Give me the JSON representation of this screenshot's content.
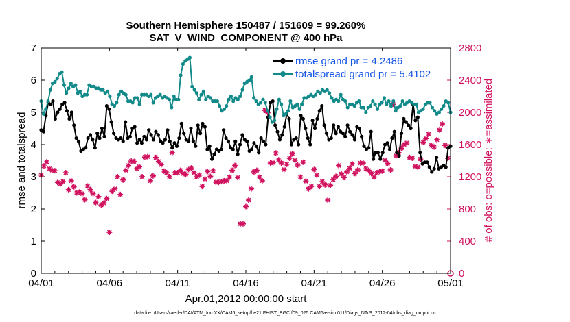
{
  "chart_data": {
    "type": "line",
    "title": "Southern Hemisphere 150487 / 151609 = 99.260%",
    "subtitle": "SAT_V_WIND_COMPONENT @ 400 hPa",
    "xlabel": "Apr.01,2012 00:00:00 start",
    "ylabel_left": "rmse and totalspread",
    "ylabel_right": "# of obs: o=possible; ∗=assimilated",
    "x_ticks": [
      "04/01",
      "04/06",
      "04/11",
      "04/16",
      "04/21",
      "04/26",
      "05/01"
    ],
    "y_left_ticks": [
      "0",
      "1",
      "2",
      "3",
      "4",
      "5",
      "6",
      "7"
    ],
    "y_right_ticks": [
      "0",
      "400",
      "800",
      "1200",
      "1600",
      "2000",
      "2400",
      "2800"
    ],
    "ylim_left": [
      0,
      7
    ],
    "ylim_right": [
      0,
      2800
    ],
    "xlim_days": [
      0,
      30
    ],
    "x_units": "days since 04/01 00:00 (6-hourly analyses)",
    "grid": "off",
    "legend_location": "top-right",
    "colors": {
      "rmse": "#000000",
      "spread": "#128a8a",
      "obs": "#d0125f",
      "legend_text": "#1455e6"
    },
    "series": [
      {
        "name": "rmse grand pr = 4.2486",
        "values": [
          4.45,
          4.4,
          4.9,
          5.3,
          5.25,
          5.35,
          4.8,
          5.0,
          5.1,
          5.25,
          5.3,
          5.05,
          4.8,
          5.0,
          4.6,
          4.2,
          4.1,
          3.8,
          3.85,
          3.9,
          4.2,
          4.3,
          4.15,
          3.9,
          4.35,
          4.2,
          4.5,
          4.25,
          5.2,
          5.1,
          4.7,
          4.35,
          4.2,
          4.15,
          4.2,
          4.1,
          4.7,
          4.2,
          4.25,
          4.5,
          4.55,
          4.05,
          4.15,
          4.05,
          4.25,
          4.15,
          4.45,
          4.3,
          4.15,
          4.4,
          4.3,
          4.1,
          4.05,
          4.15,
          4.45,
          4.1,
          3.9,
          4.05,
          3.95,
          4.2,
          4.65,
          4.35,
          4.15,
          4.1,
          4.5,
          4.1,
          3.95,
          4.6,
          4.35,
          4.65,
          4.55,
          3.85,
          3.95,
          3.55,
          3.7,
          3.85,
          3.8,
          3.85,
          4.45,
          4.2,
          4.1,
          3.9,
          3.85,
          4.1,
          3.7,
          4.0,
          4.3,
          4.15,
          4.1,
          3.8,
          3.85,
          4.05,
          3.95,
          3.75,
          4.2,
          4.1,
          4.0,
          4.85,
          5.3,
          5.35,
          4.6,
          4.4,
          4.15,
          4.3,
          4.55,
          4.95,
          4.8,
          4.0,
          4.15,
          4.2,
          4.0,
          4.9,
          4.8,
          4.5,
          4.2,
          4.0,
          4.75,
          4.5,
          4.8,
          5.05,
          5.2,
          4.6,
          4.35,
          4.15,
          4.2,
          4.6,
          4.35,
          4.55,
          4.4,
          4.35,
          4.25,
          4.6,
          4.4,
          4.3,
          4.15,
          4.55,
          4.5,
          4.25,
          3.95,
          3.85,
          3.9,
          4.4,
          3.55,
          3.75,
          3.75,
          3.55,
          3.75,
          4.0,
          4.05,
          3.85,
          4.2,
          4.4,
          3.75,
          3.65,
          4.35,
          4.8,
          4.7,
          4.6,
          4.5,
          5.25,
          4.75,
          4.85,
          3.75,
          3.4,
          3.45,
          3.45,
          3.3,
          3.15,
          3.25,
          3.6,
          3.25,
          3.3,
          3.35,
          3.3,
          3.9,
          3.95
        ],
        "note": "6-hourly values from 04/01 to 05/01"
      },
      {
        "name": "totalspread grand pr = 5.4102",
        "values": [
          5.35,
          4.95,
          5.1,
          5.35,
          5.7,
          5.9,
          5.95,
          6.05,
          6.2,
          6.25,
          5.85,
          5.6,
          5.75,
          5.9,
          5.8,
          5.85,
          5.6,
          5.65,
          5.5,
          5.55,
          5.55,
          5.85,
          5.8,
          5.8,
          5.75,
          5.75,
          5.7,
          5.7,
          5.6,
          5.65,
          5.5,
          5.25,
          5.2,
          5.3,
          5.55,
          5.65,
          5.6,
          5.55,
          5.35,
          5.35,
          5.3,
          5.45,
          5.45,
          5.25,
          5.55,
          5.55,
          5.55,
          5.5,
          5.55,
          5.3,
          5.45,
          5.5,
          5.55,
          5.45,
          5.5,
          5.45,
          5.4,
          5.15,
          5.5,
          5.4,
          5.4,
          6.15,
          6.5,
          6.6,
          6.65,
          6.7,
          5.8,
          5.7,
          5.6,
          5.4,
          5.55,
          5.65,
          5.4,
          5.5,
          5.45,
          5.35,
          5.35,
          5.35,
          5.2,
          5.05,
          5.1,
          5.2,
          5.4,
          5.5,
          5.35,
          5.45,
          5.4,
          5.5,
          5.7,
          5.9,
          5.95,
          6.0,
          6.1,
          5.45,
          5.35,
          5.25,
          5.3,
          5.4,
          5.3,
          5.05,
          4.85,
          4.7,
          4.75,
          5.1,
          5.4,
          5.25,
          4.9,
          4.95,
          5.05,
          5.35,
          5.15,
          5.2,
          5.25,
          5.1,
          5.25,
          5.45,
          5.45,
          5.5,
          5.55,
          5.5,
          5.55,
          5.65,
          5.6,
          5.7,
          5.65,
          5.7,
          5.6,
          5.45,
          5.35,
          5.4,
          5.35,
          5.55,
          5.4,
          5.35,
          5.15,
          5.25,
          5.25,
          5.2,
          5.3,
          5.35,
          5.15,
          5.15,
          5.0,
          5.15,
          5.2,
          5.35,
          5.25,
          5.1,
          5.25,
          5.3,
          5.45,
          5.25,
          5.35,
          5.2,
          5.35,
          5.05,
          5.15,
          5.2,
          5.35,
          5.25,
          5.3,
          5.35,
          5.3,
          5.25,
          5.25,
          5.0,
          5.05,
          5.1,
          5.25,
          5.3,
          5.3,
          5.15,
          5.05,
          4.95,
          5.0,
          5.1,
          5.2,
          5.35,
          5.3,
          5.0
        ],
        "note": "6-hourly values from 04/01 to 05/01"
      }
    ],
    "obs_assimilated": {
      "name": "# of obs assimilated",
      "axis": "right",
      "points": [
        [
          0.0,
          1220
        ],
        [
          0.2,
          1335
        ],
        [
          0.4,
          1385
        ],
        [
          0.6,
          1300
        ],
        [
          0.8,
          1280
        ],
        [
          1.0,
          1275
        ],
        [
          1.2,
          1130
        ],
        [
          1.4,
          1110
        ],
        [
          1.6,
          1140
        ],
        [
          1.8,
          1250
        ],
        [
          2.0,
          1040
        ],
        [
          2.2,
          1150
        ],
        [
          2.4,
          1075
        ],
        [
          2.6,
          1000
        ],
        [
          2.8,
          1010
        ],
        [
          3.0,
          990
        ],
        [
          3.2,
          915
        ],
        [
          3.4,
          1085
        ],
        [
          3.6,
          1040
        ],
        [
          3.8,
          990
        ],
        [
          4.0,
          880
        ],
        [
          4.2,
          955
        ],
        [
          4.4,
          850
        ],
        [
          4.6,
          875
        ],
        [
          4.8,
          930
        ],
        [
          5.0,
          510
        ],
        [
          5.2,
          1020
        ],
        [
          5.4,
          1050
        ],
        [
          5.6,
          1200
        ],
        [
          5.8,
          980
        ],
        [
          6.0,
          1160
        ],
        [
          6.2,
          1280
        ],
        [
          6.4,
          1340
        ],
        [
          6.6,
          1395
        ],
        [
          6.8,
          1390
        ],
        [
          7.0,
          1300
        ],
        [
          7.2,
          1325
        ],
        [
          7.4,
          1200
        ],
        [
          7.6,
          1445
        ],
        [
          7.8,
          1450
        ],
        [
          8.0,
          1150
        ],
        [
          8.2,
          1210
        ],
        [
          8.4,
          1440
        ],
        [
          8.6,
          1390
        ],
        [
          8.8,
          1350
        ],
        [
          9.0,
          1270
        ],
        [
          9.2,
          1250
        ],
        [
          9.4,
          1200
        ],
        [
          9.6,
          1500
        ],
        [
          9.8,
          1250
        ],
        [
          10.0,
          1250
        ],
        [
          10.2,
          1280
        ],
        [
          10.4,
          1240
        ],
        [
          10.6,
          1230
        ],
        [
          10.8,
          1290
        ],
        [
          11.0,
          1310
        ],
        [
          11.2,
          1250
        ],
        [
          11.4,
          1200
        ],
        [
          11.6,
          1220
        ],
        [
          11.8,
          1080
        ],
        [
          12.0,
          1170
        ],
        [
          12.2,
          1265
        ],
        [
          12.4,
          1205
        ],
        [
          12.6,
          1275
        ],
        [
          12.8,
          1135
        ],
        [
          13.0,
          1130
        ],
        [
          13.2,
          1140
        ],
        [
          13.4,
          1150
        ],
        [
          13.6,
          1150
        ],
        [
          13.8,
          1195
        ],
        [
          14.0,
          1280
        ],
        [
          14.2,
          1340
        ],
        [
          14.4,
          1190
        ],
        [
          14.6,
          615
        ],
        [
          14.8,
          615
        ],
        [
          15.0,
          830
        ],
        [
          15.2,
          910
        ],
        [
          15.4,
          1050
        ],
        [
          15.6,
          1260
        ],
        [
          15.8,
          1280
        ],
        [
          16.0,
          1195
        ],
        [
          16.2,
          1150
        ],
        [
          16.4,
          2025
        ],
        [
          16.6,
          1995
        ],
        [
          16.8,
          1370
        ],
        [
          17.0,
          1375
        ],
        [
          17.2,
          1495
        ],
        [
          17.4,
          1410
        ],
        [
          17.6,
          1370
        ],
        [
          17.8,
          1290
        ],
        [
          18.0,
          1355
        ],
        [
          18.2,
          1430
        ],
        [
          18.4,
          1485
        ],
        [
          18.6,
          1405
        ],
        [
          18.8,
          1345
        ],
        [
          19.0,
          1195
        ],
        [
          19.2,
          1380
        ],
        [
          19.4,
          1145
        ],
        [
          19.6,
          1050
        ],
        [
          19.8,
          1080
        ],
        [
          20.0,
          1290
        ],
        [
          20.2,
          1220
        ],
        [
          20.4,
          1080
        ],
        [
          20.6,
          1140
        ],
        [
          20.8,
          1100
        ],
        [
          21.0,
          910
        ],
        [
          21.2,
          1095
        ],
        [
          21.4,
          1165
        ],
        [
          21.6,
          1205
        ],
        [
          21.8,
          1340
        ],
        [
          22.0,
          1235
        ],
        [
          22.2,
          1190
        ],
        [
          22.4,
          1260
        ],
        [
          22.6,
          1305
        ],
        [
          22.8,
          1360
        ],
        [
          23.0,
          1240
        ],
        [
          23.2,
          1285
        ],
        [
          23.4,
          1370
        ],
        [
          23.6,
          1370
        ],
        [
          23.8,
          1300
        ],
        [
          24.0,
          1280
        ],
        [
          24.2,
          1240
        ],
        [
          24.4,
          1195
        ],
        [
          24.6,
          1250
        ],
        [
          24.8,
          1265
        ],
        [
          25.0,
          1270
        ],
        [
          25.2,
          1405
        ],
        [
          25.4,
          1365
        ],
        [
          25.6,
          1285
        ],
        [
          25.8,
          2100
        ],
        [
          26.0,
          1460
        ],
        [
          26.2,
          1500
        ],
        [
          26.4,
          1555
        ],
        [
          26.6,
          1600
        ],
        [
          26.8,
          1620
        ],
        [
          27.0,
          1440
        ],
        [
          27.2,
          1430
        ],
        [
          27.4,
          1330
        ],
        [
          27.6,
          1320
        ],
        [
          27.8,
          1420
        ],
        [
          28.0,
          1630
        ],
        [
          28.2,
          1675
        ],
        [
          28.4,
          1730
        ],
        [
          28.6,
          1590
        ],
        [
          28.8,
          1570
        ],
        [
          29.0,
          1660
        ],
        [
          29.2,
          1780
        ],
        [
          29.4,
          1855
        ],
        [
          29.6,
          1590
        ],
        [
          29.8,
          1430
        ]
      ]
    },
    "obs_possible": {
      "name": "# of obs possible",
      "axis": "right",
      "points": [
        [
          30.0,
          0
        ]
      ]
    }
  },
  "footer": {
    "data_file": "data file: /Users/raeder/DAI/ATM_forcXX/CAM6_setup/f.e21.FHIST_BGC.f09_025.CAM6assim.011/Diags_NTrS_2012-04/obs_diag_output.nc"
  }
}
